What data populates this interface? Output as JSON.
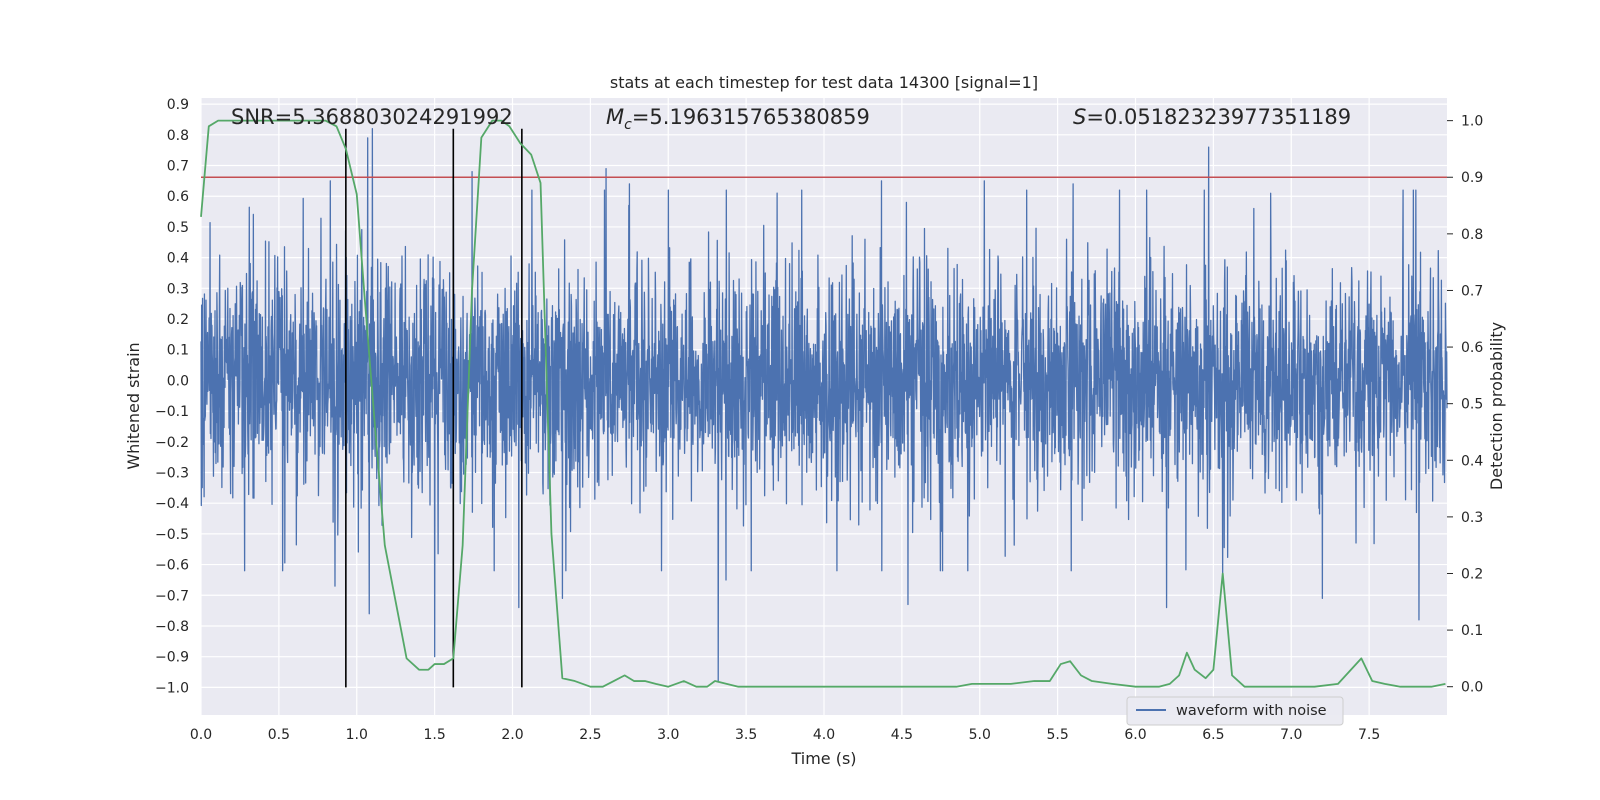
{
  "chart_data": {
    "type": "line",
    "title": "stats at each timestep for test data 14300 [signal=1]",
    "xlabel": "Time (s)",
    "ylabel": "Whitened strain",
    "ylabel_right": "Detection probability",
    "xlim": [
      0.0,
      8.0
    ],
    "ylim": [
      -1.09,
      0.92
    ],
    "ylim_right": [
      -0.05,
      1.04
    ],
    "xticks": [
      0.0,
      0.5,
      1.0,
      1.5,
      2.0,
      2.5,
      3.0,
      3.5,
      4.0,
      4.5,
      5.0,
      5.5,
      6.0,
      6.5,
      7.0,
      7.5
    ],
    "xtick_labels": [
      "0.0",
      "0.5",
      "1.0",
      "1.5",
      "2.0",
      "2.5",
      "3.0",
      "3.5",
      "4.0",
      "4.5",
      "5.0",
      "5.5",
      "6.0",
      "6.5",
      "7.0",
      "7.5"
    ],
    "yticks": [
      0.9,
      0.8,
      0.7,
      0.6,
      0.5,
      0.4,
      0.3,
      0.2,
      0.1,
      0.0,
      -0.1,
      -0.2,
      -0.3,
      -0.4,
      -0.5,
      -0.6,
      -0.7,
      -0.8,
      -0.9,
      -1.0
    ],
    "ytick_labels": [
      "0.9",
      "0.8",
      "0.7",
      "0.6",
      "0.5",
      "0.4",
      "0.3",
      "0.2",
      "0.1",
      "0.0",
      "−0.1",
      "−0.2",
      "−0.3",
      "−0.4",
      "−0.5",
      "−0.6",
      "−0.7",
      "−0.8",
      "−0.9",
      "−1.0"
    ],
    "yticks_right": [
      1.0,
      0.9,
      0.8,
      0.7,
      0.6,
      0.5,
      0.4,
      0.3,
      0.2,
      0.1,
      0.0
    ],
    "ytick_labels_right": [
      "1.0",
      "0.9",
      "0.8",
      "0.7",
      "0.6",
      "0.5",
      "0.4",
      "0.3",
      "0.2",
      "0.1",
      "0.0"
    ],
    "annotations": {
      "snr": "SNR=5.368803024291992",
      "mc_symbol": "M",
      "mc_sub": "c",
      "mc_value": "=5.196315765380859",
      "s_symbol": "S",
      "s_value": "=0.05182323977351189"
    },
    "threshold": {
      "value_right_axis": 0.9,
      "color": "#c44e52"
    },
    "vertical_lines": [
      0.93,
      1.62,
      2.06
    ],
    "vertical_line_range": [
      -1.0,
      0.82
    ],
    "legend": {
      "label": "waveform with noise",
      "placement": "bottom-right"
    },
    "series": [
      {
        "name": "waveform with noise",
        "axis": "left",
        "color": "#4c72b0",
        "kind": "noise",
        "duration_s": 8.0,
        "typical_amplitude": 0.28,
        "spikes": [
          {
            "x": 1.1,
            "y": 0.82
          },
          {
            "x": 1.07,
            "y": 0.79
          },
          {
            "x": 0.83,
            "y": 0.65
          },
          {
            "x": 1.62,
            "y": 0.64
          },
          {
            "x": 1.74,
            "y": 0.68
          },
          {
            "x": 2.6,
            "y": 0.69
          },
          {
            "x": 6.47,
            "y": 0.76
          },
          {
            "x": 6.56,
            "y": -0.64
          },
          {
            "x": 3.32,
            "y": -0.98
          },
          {
            "x": 1.08,
            "y": -0.76
          },
          {
            "x": 1.5,
            "y": -0.9
          },
          {
            "x": 2.04,
            "y": -0.74
          },
          {
            "x": 2.32,
            "y": -0.71
          },
          {
            "x": 3.37,
            "y": -0.65
          },
          {
            "x": 4.54,
            "y": -0.73
          },
          {
            "x": 5.03,
            "y": -0.69
          },
          {
            "x": 6.2,
            "y": -0.74
          },
          {
            "x": 7.2,
            "y": -0.71
          },
          {
            "x": 7.82,
            "y": -0.78
          },
          {
            "x": 0.86,
            "y": -0.67
          },
          {
            "x": 2.75,
            "y": 0.64
          },
          {
            "x": 4.37,
            "y": 0.65
          },
          {
            "x": 5.03,
            "y": 0.65
          },
          {
            "x": 5.6,
            "y": 0.64
          },
          {
            "x": 7.8,
            "y": 0.62
          }
        ]
      },
      {
        "name": "detection probability",
        "axis": "right",
        "color": "#55a868",
        "x": [
          0.0,
          0.05,
          0.11,
          0.2,
          0.4,
          0.6,
          0.8,
          0.87,
          0.93,
          1.0,
          1.05,
          1.12,
          1.18,
          1.25,
          1.32,
          1.4,
          1.46,
          1.5,
          1.56,
          1.62,
          1.68,
          1.74,
          1.8,
          1.87,
          1.93,
          1.98,
          2.05,
          2.12,
          2.18,
          2.25,
          2.32,
          2.4,
          2.5,
          2.58,
          2.65,
          2.72,
          2.78,
          2.85,
          2.92,
          3.0,
          3.1,
          3.18,
          3.25,
          3.3,
          3.45,
          3.6,
          3.8,
          4.0,
          4.3,
          4.6,
          4.85,
          4.95,
          5.1,
          5.2,
          5.35,
          5.45,
          5.52,
          5.58,
          5.65,
          5.72,
          5.85,
          6.0,
          6.15,
          6.22,
          6.28,
          6.33,
          6.38,
          6.45,
          6.5,
          6.56,
          6.62,
          6.7,
          6.85,
          7.0,
          7.15,
          7.3,
          7.4,
          7.45,
          7.52,
          7.6,
          7.7,
          7.8,
          7.9,
          7.99
        ],
        "y": [
          0.83,
          0.99,
          1.0,
          1.0,
          1.0,
          1.0,
          1.0,
          0.99,
          0.95,
          0.87,
          0.69,
          0.45,
          0.25,
          0.15,
          0.05,
          0.03,
          0.03,
          0.04,
          0.04,
          0.05,
          0.25,
          0.7,
          0.97,
          1.0,
          1.0,
          0.99,
          0.96,
          0.94,
          0.89,
          0.27,
          0.015,
          0.01,
          0.0,
          0.0,
          0.01,
          0.02,
          0.01,
          0.01,
          0.005,
          0.0,
          0.01,
          0.0,
          0.0,
          0.01,
          0.0,
          0.0,
          0.0,
          0.0,
          0.0,
          0.0,
          0.0,
          0.005,
          0.005,
          0.005,
          0.01,
          0.01,
          0.04,
          0.045,
          0.02,
          0.01,
          0.005,
          0.0,
          0.0,
          0.005,
          0.02,
          0.06,
          0.03,
          0.015,
          0.03,
          0.2,
          0.02,
          0.0,
          0.0,
          0.0,
          0.0,
          0.005,
          0.035,
          0.05,
          0.01,
          0.005,
          0.0,
          0.0,
          0.0,
          0.005
        ]
      }
    ]
  }
}
